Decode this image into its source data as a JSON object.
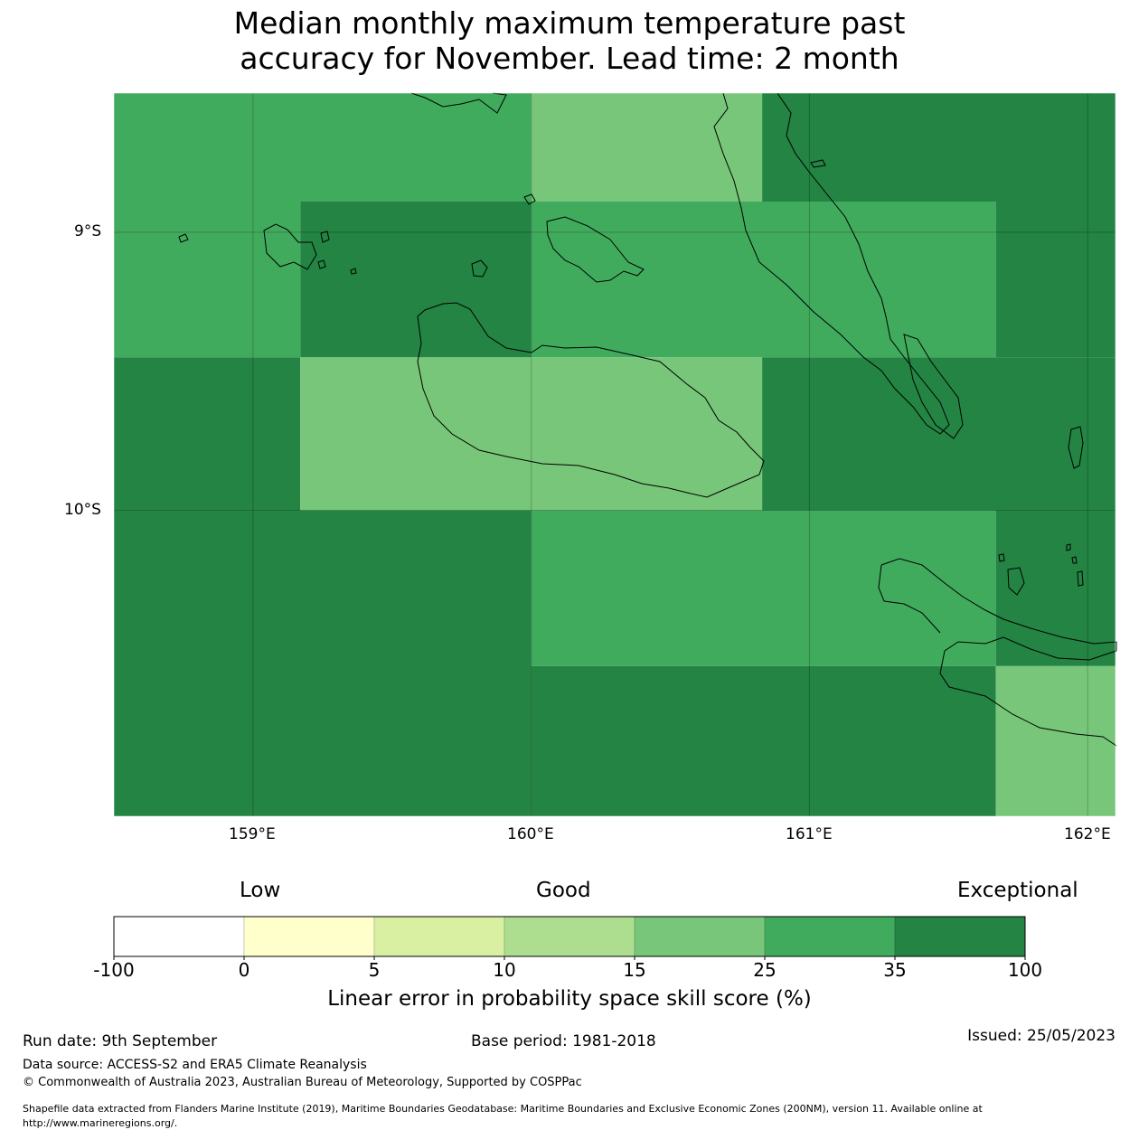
{
  "title_lines": [
    "Median monthly maximum temperature past",
    "accuracy for November. Lead time: 2 month"
  ],
  "map": {
    "lon_range": [
      158.5,
      162.1
    ],
    "lat_range": [
      -11.1,
      -8.5
    ],
    "lon_ticks": [
      {
        "value": 159,
        "label": "159°E"
      },
      {
        "value": 160,
        "label": "160°E"
      },
      {
        "value": 161,
        "label": "161°E"
      },
      {
        "value": 162,
        "label": "162°E"
      }
    ],
    "lat_ticks": [
      {
        "value": -9,
        "label": "9°S"
      },
      {
        "value": -10,
        "label": "10°S"
      }
    ],
    "grid_cells": [
      {
        "lon": [
          158.5,
          160.0
        ],
        "lat": [
          -8.5,
          -8.89
        ],
        "category": 5
      },
      {
        "lon": [
          160.0,
          160.83
        ],
        "lat": [
          -8.5,
          -8.89
        ],
        "category": 4
      },
      {
        "lon": [
          160.83,
          162.1
        ],
        "lat": [
          -8.5,
          -8.89
        ],
        "category": 6
      },
      {
        "lon": [
          158.5,
          159.17
        ],
        "lat": [
          -8.89,
          -9.45
        ],
        "category": 5
      },
      {
        "lon": [
          159.17,
          160.0
        ],
        "lat": [
          -8.89,
          -9.45
        ],
        "category": 6
      },
      {
        "lon": [
          160.0,
          161.67
        ],
        "lat": [
          -8.89,
          -9.45
        ],
        "category": 5
      },
      {
        "lon": [
          161.67,
          162.1
        ],
        "lat": [
          -8.89,
          -9.45
        ],
        "category": 6
      },
      {
        "lon": [
          158.5,
          159.17
        ],
        "lat": [
          -9.45,
          -10.0
        ],
        "category": 6
      },
      {
        "lon": [
          159.17,
          160.83
        ],
        "lat": [
          -9.45,
          -10.0
        ],
        "category": 4
      },
      {
        "lon": [
          160.83,
          162.1
        ],
        "lat": [
          -9.45,
          -10.0
        ],
        "category": 6
      },
      {
        "lon": [
          158.5,
          160.0
        ],
        "lat": [
          -10.0,
          -11.1
        ],
        "category": 6
      },
      {
        "lon": [
          160.0,
          161.67
        ],
        "lat": [
          -10.0,
          -10.56
        ],
        "category": 5
      },
      {
        "lon": [
          161.67,
          162.1
        ],
        "lat": [
          -10.0,
          -10.56
        ],
        "category": 6
      },
      {
        "lon": [
          160.0,
          161.67
        ],
        "lat": [
          -10.56,
          -11.1
        ],
        "category": 6
      },
      {
        "lon": [
          161.67,
          162.1
        ],
        "lat": [
          -10.56,
          -11.1
        ],
        "category": 4
      }
    ]
  },
  "colorbar": {
    "categories": [
      "Low",
      "Good",
      "Exceptional"
    ],
    "ticks": [
      "-100",
      "0",
      "5",
      "10",
      "15",
      "25",
      "35",
      "100"
    ],
    "colors": [
      "#ffffff",
      "#ffffcc",
      "#d9f0a3",
      "#addd8e",
      "#78c679",
      "#41ab5d",
      "#238443"
    ],
    "label": "Linear error in probability space skill score (%)"
  },
  "footer": {
    "run_date": "Run date: 9th September",
    "base_period": "Base period: 1981-2018",
    "issued": "Issued: 25/05/2023",
    "data_source": "Data source: ACCESS-S2 and ERA5 Climate Reanalysis",
    "copyright": "© Commonwealth of Australia 2023, Australian Bureau of Meteorology, Supported by COSPPac",
    "shapefile_line1": "Shapefile data extracted from Flanders Marine Institute (2019), Maritime Boundaries Geodatabase: Maritime Boundaries and Exclusive Economic Zones (200NM), version 11. Available online at",
    "shapefile_line2": "http://www.marineregions.org/."
  }
}
